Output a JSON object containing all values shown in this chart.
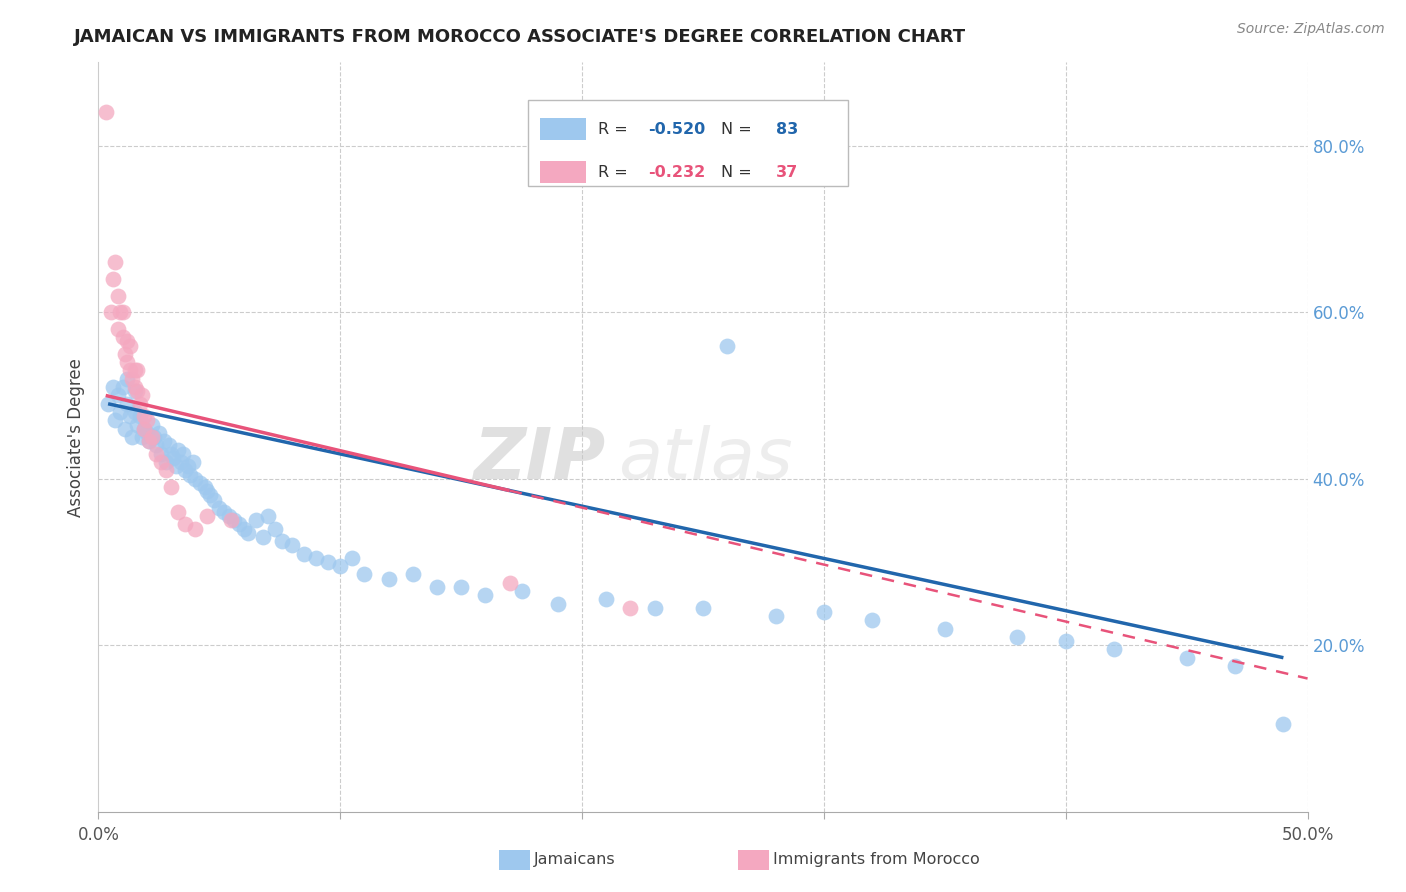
{
  "title": "JAMAICAN VS IMMIGRANTS FROM MOROCCO ASSOCIATE'S DEGREE CORRELATION CHART",
  "source": "Source: ZipAtlas.com",
  "ylabel_label": "Associate's Degree",
  "xlim": [
    0.0,
    0.5
  ],
  "ylim": [
    0.0,
    0.9
  ],
  "blue_color": "#9EC8EE",
  "pink_color": "#F4A8C0",
  "blue_line_color": "#2166AC",
  "pink_line_color": "#E8537A",
  "legend_blue_R": "-0.520",
  "legend_blue_N": "83",
  "legend_pink_R": "-0.232",
  "legend_pink_N": "37",
  "legend_label_blue": "Jamaicans",
  "legend_label_pink": "Immigrants from Morocco",
  "watermark": "ZIPatlas",
  "blue_scatter_x": [
    0.004,
    0.006,
    0.007,
    0.008,
    0.009,
    0.01,
    0.011,
    0.012,
    0.012,
    0.013,
    0.014,
    0.015,
    0.015,
    0.016,
    0.017,
    0.018,
    0.019,
    0.02,
    0.021,
    0.022,
    0.023,
    0.024,
    0.025,
    0.026,
    0.027,
    0.028,
    0.029,
    0.03,
    0.031,
    0.032,
    0.033,
    0.034,
    0.035,
    0.036,
    0.037,
    0.038,
    0.039,
    0.04,
    0.042,
    0.044,
    0.045,
    0.046,
    0.048,
    0.05,
    0.052,
    0.054,
    0.056,
    0.058,
    0.06,
    0.062,
    0.065,
    0.068,
    0.07,
    0.073,
    0.076,
    0.08,
    0.085,
    0.09,
    0.095,
    0.1,
    0.105,
    0.11,
    0.12,
    0.13,
    0.14,
    0.15,
    0.16,
    0.175,
    0.19,
    0.21,
    0.23,
    0.25,
    0.28,
    0.3,
    0.32,
    0.35,
    0.38,
    0.4,
    0.42,
    0.45,
    0.47,
    0.49,
    0.26
  ],
  "blue_scatter_y": [
    0.49,
    0.51,
    0.47,
    0.5,
    0.48,
    0.51,
    0.46,
    0.49,
    0.52,
    0.475,
    0.45,
    0.48,
    0.505,
    0.465,
    0.475,
    0.45,
    0.46,
    0.455,
    0.445,
    0.465,
    0.45,
    0.44,
    0.455,
    0.43,
    0.445,
    0.42,
    0.44,
    0.43,
    0.425,
    0.415,
    0.435,
    0.42,
    0.43,
    0.41,
    0.415,
    0.405,
    0.42,
    0.4,
    0.395,
    0.39,
    0.385,
    0.38,
    0.375,
    0.365,
    0.36,
    0.355,
    0.35,
    0.345,
    0.34,
    0.335,
    0.35,
    0.33,
    0.355,
    0.34,
    0.325,
    0.32,
    0.31,
    0.305,
    0.3,
    0.295,
    0.305,
    0.285,
    0.28,
    0.285,
    0.27,
    0.27,
    0.26,
    0.265,
    0.25,
    0.255,
    0.245,
    0.245,
    0.235,
    0.24,
    0.23,
    0.22,
    0.21,
    0.205,
    0.195,
    0.185,
    0.175,
    0.105,
    0.56
  ],
  "pink_scatter_x": [
    0.003,
    0.005,
    0.006,
    0.007,
    0.008,
    0.008,
    0.009,
    0.01,
    0.01,
    0.011,
    0.012,
    0.012,
    0.013,
    0.013,
    0.014,
    0.015,
    0.015,
    0.016,
    0.016,
    0.017,
    0.018,
    0.019,
    0.019,
    0.02,
    0.021,
    0.022,
    0.024,
    0.026,
    0.028,
    0.03,
    0.033,
    0.036,
    0.04,
    0.045,
    0.055,
    0.17,
    0.22
  ],
  "pink_scatter_y": [
    0.84,
    0.6,
    0.64,
    0.66,
    0.62,
    0.58,
    0.6,
    0.57,
    0.6,
    0.55,
    0.565,
    0.54,
    0.53,
    0.56,
    0.52,
    0.53,
    0.51,
    0.505,
    0.53,
    0.49,
    0.5,
    0.475,
    0.46,
    0.47,
    0.445,
    0.45,
    0.43,
    0.42,
    0.41,
    0.39,
    0.36,
    0.345,
    0.34,
    0.355,
    0.35,
    0.275,
    0.245
  ],
  "blue_line_x0": 0.004,
  "blue_line_x1": 0.49,
  "blue_line_y0": 0.49,
  "blue_line_y1": 0.185,
  "pink_line_x0": 0.003,
  "pink_line_x1": 0.5,
  "pink_line_y0": 0.5,
  "pink_line_y1": 0.16
}
